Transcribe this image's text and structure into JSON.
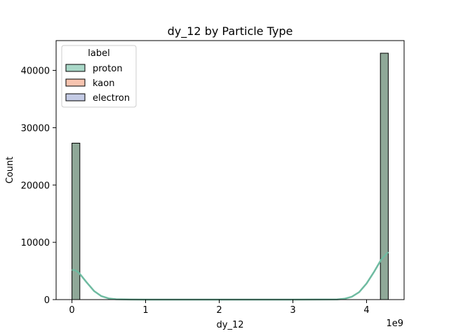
{
  "chart_data": {
    "type": "bar",
    "title": "dy_12 by Particle Type",
    "xlabel": "dy_12",
    "ylabel": "Count",
    "x_offset_label": "1e9",
    "xlim": [
      -0.215,
      4.51
    ],
    "ylim": [
      0,
      45200
    ],
    "x_ticks": [
      0,
      1,
      2,
      3,
      4
    ],
    "x_tick_labels": [
      "0",
      "1",
      "2",
      "3",
      "4"
    ],
    "y_ticks": [
      0,
      10000,
      20000,
      30000,
      40000
    ],
    "y_tick_labels": [
      "0",
      "10000",
      "20000",
      "30000",
      "40000"
    ],
    "legend": {
      "title": "label",
      "placement": "upper-left",
      "entries": [
        {
          "name": "proton",
          "color": "#a9d8c8"
        },
        {
          "name": "kaon",
          "color": "#f7c4b0"
        },
        {
          "name": "electron",
          "color": "#c4cbe5"
        }
      ]
    },
    "bars": [
      {
        "x_start": 0.0,
        "x_end": 0.107,
        "value": 27300
      },
      {
        "x_start": 4.188,
        "x_end": 4.295,
        "value": 43000
      }
    ],
    "kde": {
      "name": "proton",
      "color": "#6fbba1",
      "x": [
        0.0,
        0.05,
        0.1,
        0.2,
        0.3,
        0.4,
        0.5,
        0.6,
        0.8,
        1.0,
        2.0,
        3.0,
        3.6,
        3.7,
        3.8,
        3.9,
        4.0,
        4.1,
        4.2,
        4.295
      ],
      "y": [
        5200,
        5100,
        4600,
        3000,
        1500,
        600,
        200,
        60,
        10,
        0,
        0,
        0,
        30,
        150,
        500,
        1300,
        2800,
        4800,
        7000,
        8300
      ]
    },
    "colors": {
      "bar_fill": "#8fa898",
      "bar_edge": "#000000",
      "axis": "#000000"
    }
  }
}
